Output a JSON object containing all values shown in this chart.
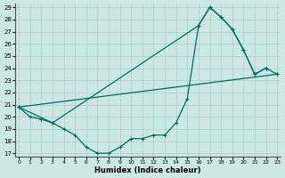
{
  "xlabel": "Humidex (Indice chaleur)",
  "bg_color": "#cce8e4",
  "grid_color": "#aacfcb",
  "line_color": "#006b5e",
  "ylim_min": 17,
  "ylim_max": 29,
  "xlim_min": 0,
  "xlim_max": 23,
  "yticks": [
    17,
    18,
    19,
    20,
    21,
    22,
    23,
    24,
    25,
    26,
    27,
    28,
    29
  ],
  "xticks": [
    0,
    1,
    2,
    3,
    4,
    5,
    6,
    7,
    8,
    9,
    10,
    11,
    12,
    13,
    14,
    15,
    16,
    17,
    18,
    19,
    20,
    21,
    22,
    23
  ],
  "curve1_x": [
    0,
    1,
    2,
    3,
    4,
    5,
    6,
    7,
    8,
    9,
    10,
    11,
    12,
    13,
    14,
    15,
    16,
    17,
    18,
    19,
    20,
    21,
    22
  ],
  "curve1_y": [
    20.8,
    20.0,
    19.8,
    19.5,
    19.0,
    18.5,
    17.5,
    17.0,
    17.0,
    17.5,
    18.2,
    18.2,
    18.5,
    18.5,
    19.5,
    21.5,
    27.5,
    29.0,
    28.2,
    27.2,
    25.5,
    23.5,
    24.0
  ],
  "curve2_x": [
    0,
    23
  ],
  "curve2_y": [
    20.8,
    23.5
  ],
  "curve3_x": [
    0,
    3,
    16,
    17,
    18,
    19,
    20,
    21,
    22,
    23
  ],
  "curve3_y": [
    20.8,
    19.5,
    27.5,
    29.0,
    28.2,
    27.2,
    25.5,
    23.5,
    24.0,
    23.5
  ]
}
